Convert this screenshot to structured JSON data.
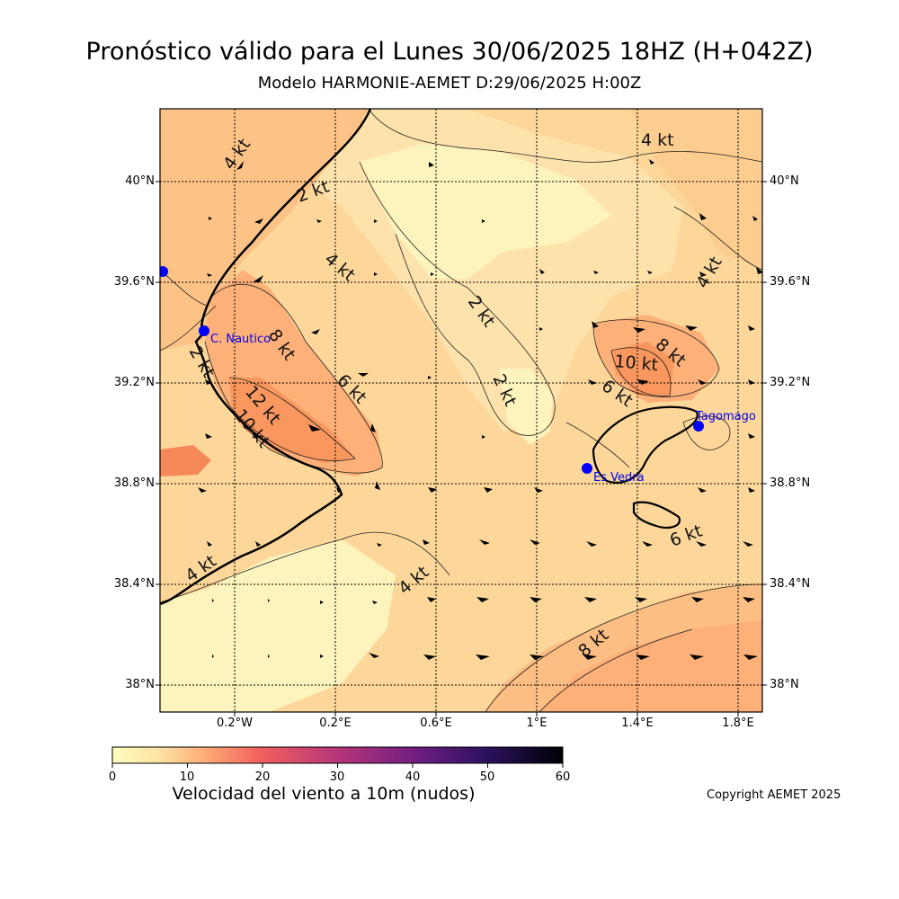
{
  "header": {
    "title": "Pronóstico válido para el Lunes 30/06/2025 18HZ (H+042Z)",
    "subtitle": "Modelo HARMONIE-AEMET D:29/06/2025 H:00Z"
  },
  "axes": {
    "lat_ticks": [
      "40°N",
      "39.6°N",
      "39.2°N",
      "38.8°N",
      "38.4°N",
      "38°N"
    ],
    "lon_ticks": [
      "0.2°W",
      "0.2°E",
      "0.6°E",
      "1°E",
      "1.4°E",
      "1.8°E"
    ]
  },
  "stations": [
    {
      "name": "C. Nautico",
      "color": "#0000ff"
    },
    {
      "name": "Tagomago",
      "color": "#0000ff"
    },
    {
      "name": "Es Vedra",
      "color": "#0000ff"
    },
    {
      "name": "",
      "color": "#0000ff"
    }
  ],
  "contour_labels": [
    "4 kt",
    "2 kt",
    "4 kt",
    "4 kt",
    "2 kt",
    "4 kt",
    "8 kt",
    "6 kt",
    "12 kt",
    "10 kt",
    "2 kt",
    "10 kt",
    "8 kt",
    "6 kt",
    "4 kt",
    "6 kt",
    "2 kt",
    "4 kt",
    "8 kt"
  ],
  "colorbar": {
    "ticks": [
      "0",
      "10",
      "20",
      "30",
      "40",
      "50",
      "60"
    ],
    "label": "Velocidad del viento a 10m (nudos)",
    "colors": [
      "#fcfdbf",
      "#feb078",
      "#f1605d",
      "#b63679",
      "#721f81",
      "#2c115f",
      "#000004"
    ]
  },
  "copyright": "Copyright AEMET 2025"
}
